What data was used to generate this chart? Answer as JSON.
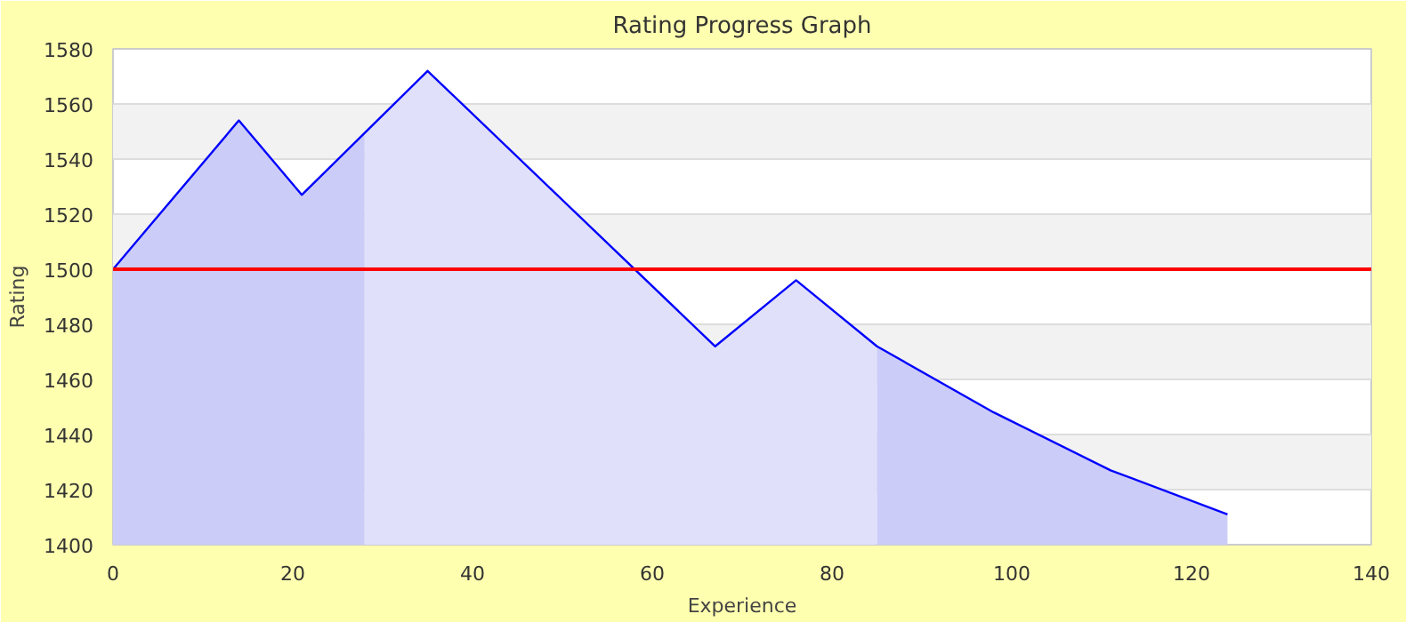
{
  "chart_data": {
    "type": "line",
    "title": "Rating Progress Graph",
    "xlabel": "Experience",
    "ylabel": "Rating",
    "series": [
      {
        "type": "area",
        "color": "#ccccf8",
        "x": [
          0,
          14,
          21,
          28
        ],
        "values": [
          1500,
          1554,
          1527,
          1549.5
        ]
      },
      {
        "type": "area",
        "color": "#e0e0fa",
        "x": [
          28,
          35,
          67,
          76,
          85
        ],
        "values": [
          1549.5,
          1572,
          1472,
          1496,
          1472
        ]
      },
      {
        "type": "area",
        "color": "#ccccf8",
        "x": [
          85,
          98,
          111,
          124
        ],
        "values": [
          1472,
          1448,
          1427,
          1411
        ]
      },
      {
        "color": "#0000ff",
        "x": [
          0,
          14,
          21,
          35,
          67,
          76,
          85,
          98,
          111,
          124
        ],
        "values": [
          1500,
          1554,
          1527,
          1572,
          1472,
          1496,
          1472,
          1448,
          1427,
          1411
        ]
      }
    ],
    "ref_lines": [
      {
        "axis": "y",
        "value": 1500,
        "color": "#ff0000"
      }
    ],
    "xlim": [
      0,
      140
    ],
    "xticks": [
      0,
      20,
      40,
      60,
      80,
      100,
      120,
      140
    ],
    "ylim": [
      1400,
      1580
    ],
    "yticks": [
      1400,
      1420,
      1440,
      1460,
      1480,
      1500,
      1520,
      1540,
      1560,
      1580
    ],
    "grid": "y"
  }
}
